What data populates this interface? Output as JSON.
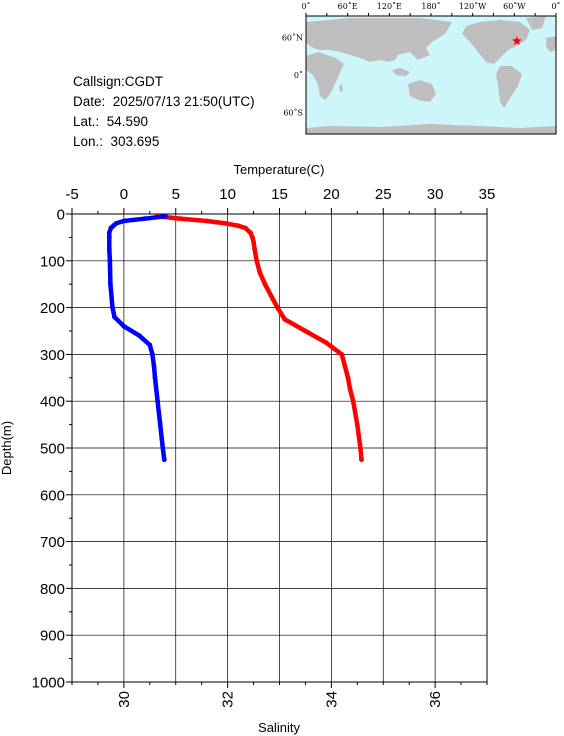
{
  "station": {
    "callsign": "Callsign:CGDT",
    "date": "Date:  2025/07/13 21:50(UTC)",
    "lat": "Lat.:  54.590",
    "lon": "Lon.:  303.695"
  },
  "map": {
    "lon_labels": [
      "0˚",
      "60˚E",
      "120˚E",
      "180˚",
      "120˚W",
      "60˚W",
      "0˚"
    ],
    "lat_labels": [
      "60˚N",
      "0˚",
      "60˚S"
    ],
    "ocean_color": "#cdf6fb",
    "land_color": "#bebebe",
    "marker_color": "#ff0000",
    "marker": {
      "lon": 303.695,
      "lat": 54.59
    }
  },
  "chart_data": {
    "type": "line",
    "y": {
      "label": "Depth(m)",
      "range": [
        0,
        1000
      ],
      "ticks": [
        0,
        100,
        200,
        300,
        400,
        500,
        600,
        700,
        800,
        900,
        1000
      ],
      "inverted": true
    },
    "x_top": {
      "label": "Temperature(C)",
      "range": [
        -5,
        35
      ],
      "ticks": [
        -5,
        0,
        5,
        10,
        15,
        20,
        25,
        30,
        35
      ]
    },
    "x_bottom": {
      "label": "Salinity",
      "range": [
        29,
        37
      ],
      "ticks": [
        30,
        32,
        34,
        36
      ]
    },
    "grid": true,
    "series": [
      {
        "axis": "temperature",
        "color": "#ff0000",
        "depth": [
          5,
          10,
          15,
          20,
          25,
          30,
          40,
          50,
          60,
          75,
          100,
          125,
          150,
          175,
          200,
          225,
          250,
          275,
          300,
          325,
          350,
          375,
          400,
          450,
          500,
          525
        ],
        "values": [
          3.2,
          5.5,
          8.0,
          9.8,
          11.0,
          11.7,
          12.2,
          12.4,
          12.5,
          12.6,
          12.8,
          13.1,
          13.6,
          14.2,
          14.8,
          15.5,
          17.5,
          19.5,
          21.0,
          21.3,
          21.6,
          21.8,
          22.1,
          22.5,
          22.8,
          22.9
        ]
      },
      {
        "axis": "salinity",
        "color": "#0000ff",
        "depth": [
          5,
          10,
          15,
          20,
          25,
          30,
          40,
          50,
          75,
          100,
          150,
          200,
          220,
          240,
          260,
          280,
          300,
          325,
          350,
          400,
          450,
          500,
          525
        ],
        "values": [
          30.8,
          30.4,
          30.0,
          29.85,
          29.8,
          29.75,
          29.72,
          29.72,
          29.72,
          29.73,
          29.74,
          29.78,
          29.82,
          30.0,
          30.3,
          30.5,
          30.55,
          30.58,
          30.6,
          30.65,
          30.7,
          30.75,
          30.78
        ]
      }
    ]
  }
}
